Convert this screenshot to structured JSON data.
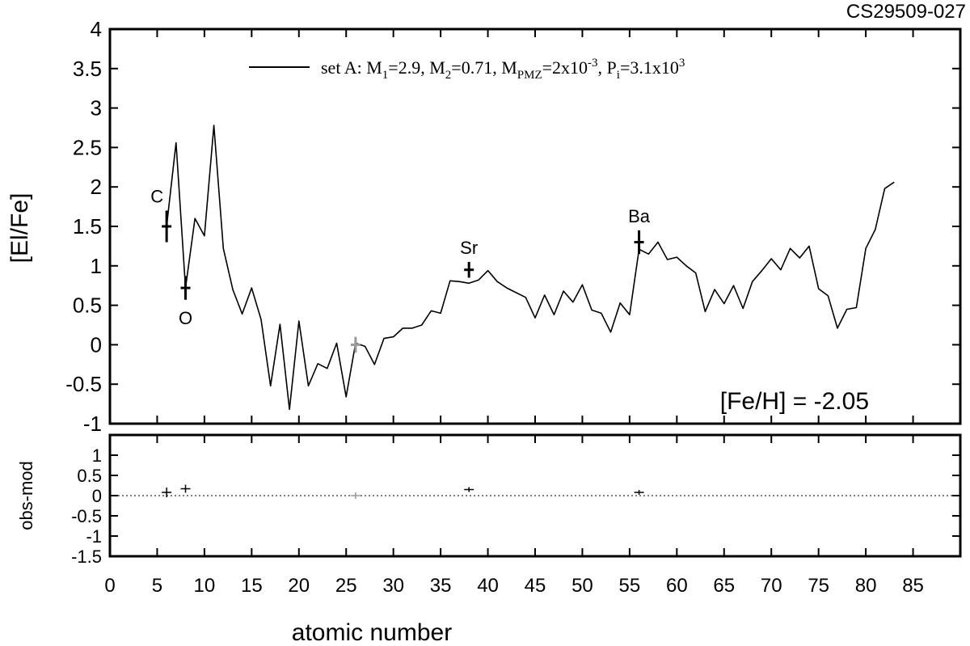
{
  "corner_label": "CS29509-027",
  "chart_data": [
    {
      "type": "line",
      "ylabel": "[El/Fe]",
      "xlim": [
        0,
        90
      ],
      "ylim": [
        -1,
        4
      ],
      "yticks": [
        "4",
        "3.5",
        "3",
        "2.5",
        "2",
        "1.5",
        "1",
        "0.5",
        "0",
        "-0.5",
        "-1"
      ],
      "ytick_values": [
        4,
        3.5,
        3,
        2.5,
        2,
        1.5,
        1,
        0.5,
        0,
        -0.5,
        -1
      ],
      "legend": {
        "position": "top",
        "set": "set A:",
        "m1": "M",
        "m1_sub": "1",
        "m1_val": "=2.9,",
        "m2": "M",
        "m2_sub": "2",
        "m2_val": "=0.71,",
        "mpmz": "M",
        "mpmz_sub": "PMZ",
        "mpmz_val": "=2x10",
        "mpmz_exp": "-3",
        "pi": ",  P",
        "pi_sub": "i",
        "pi_val": "=3.1x10",
        "pi_exp": "3"
      },
      "annotation": "[Fe/H] = -2.05",
      "series": [
        {
          "x": [
            6,
            7,
            8,
            9,
            10,
            11,
            12,
            13,
            14,
            15,
            16,
            17,
            18,
            19,
            20,
            21,
            22,
            23,
            24,
            25,
            26,
            27,
            28,
            29,
            30,
            31,
            32,
            33,
            34,
            35,
            36,
            37,
            38,
            39,
            40,
            41,
            42,
            43,
            44,
            45,
            46,
            47,
            48,
            49,
            50,
            51,
            52,
            53,
            54,
            55,
            56,
            57,
            58,
            59,
            60,
            61,
            62,
            63,
            64,
            65,
            66,
            67,
            68,
            69,
            70,
            71,
            72,
            73,
            74,
            75,
            76,
            77,
            78,
            79,
            80,
            81,
            82,
            83
          ],
          "y": [
            1.5,
            2.56,
            0.72,
            1.6,
            1.38,
            2.78,
            1.22,
            0.7,
            0.39,
            0.72,
            0.32,
            -0.52,
            0.26,
            -0.82,
            0.3,
            -0.52,
            -0.24,
            -0.3,
            0.02,
            -0.66,
            0.02,
            -0.02,
            -0.25,
            0.08,
            0.1,
            0.21,
            0.21,
            0.25,
            0.43,
            0.4,
            0.81,
            0.8,
            0.78,
            0.82,
            0.94,
            0.8,
            0.72,
            0.66,
            0.6,
            0.34,
            0.63,
            0.38,
            0.68,
            0.54,
            0.76,
            0.44,
            0.4,
            0.16,
            0.53,
            0.38,
            1.21,
            1.15,
            1.3,
            1.08,
            1.11,
            1.0,
            0.91,
            0.42,
            0.7,
            0.52,
            0.75,
            0.46,
            0.8,
            0.94,
            1.09,
            0.95,
            1.22,
            1.1,
            1.25,
            0.71,
            0.62,
            0.21,
            0.45,
            0.47,
            1.22,
            1.46,
            1.98,
            2.06
          ]
        }
      ],
      "observations": [
        {
          "element": "C",
          "x": 6,
          "y": 1.5,
          "err": 0.2,
          "color": "#000000"
        },
        {
          "element": "O",
          "x": 8,
          "y": 0.72,
          "err": 0.15,
          "color": "#000000"
        },
        {
          "element": "",
          "x": 26,
          "y": 0.0,
          "err": 0.1,
          "color": "#999999"
        },
        {
          "element": "Sr",
          "x": 38,
          "y": 0.95,
          "err": 0.1,
          "color": "#000000"
        },
        {
          "element": "Ba",
          "x": 56,
          "y": 1.3,
          "err": 0.15,
          "color": "#000000"
        }
      ]
    },
    {
      "type": "scatter",
      "ylabel": "obs-mod",
      "xlabel": "atomic number",
      "xlim": [
        0,
        90
      ],
      "ylim": [
        -1.5,
        1.5
      ],
      "xticks": [
        "0",
        "5",
        "10",
        "15",
        "20",
        "25",
        "30",
        "35",
        "40",
        "45",
        "50",
        "55",
        "60",
        "65",
        "70",
        "75",
        "80",
        "85"
      ],
      "xtick_values": [
        0,
        5,
        10,
        15,
        20,
        25,
        30,
        35,
        40,
        45,
        50,
        55,
        60,
        65,
        70,
        75,
        80,
        85
      ],
      "yticks": [
        "1",
        "0.5",
        "0",
        "-0.5",
        "-1",
        "-1.5"
      ],
      "ytick_values": [
        1,
        0.5,
        0,
        -0.5,
        -1,
        -1.5
      ],
      "zero_line": true,
      "points": [
        {
          "x": 6,
          "y": 0.08,
          "err": 0.12,
          "color": "#000000"
        },
        {
          "x": 8,
          "y": 0.17,
          "err": 0.1,
          "color": "#000000"
        },
        {
          "x": 26,
          "y": 0.0,
          "err": 0.08,
          "color": "#999999"
        },
        {
          "x": 38,
          "y": 0.15,
          "err": 0.06,
          "color": "#000000"
        },
        {
          "x": 56,
          "y": 0.08,
          "err": 0.06,
          "color": "#000000"
        }
      ]
    }
  ]
}
